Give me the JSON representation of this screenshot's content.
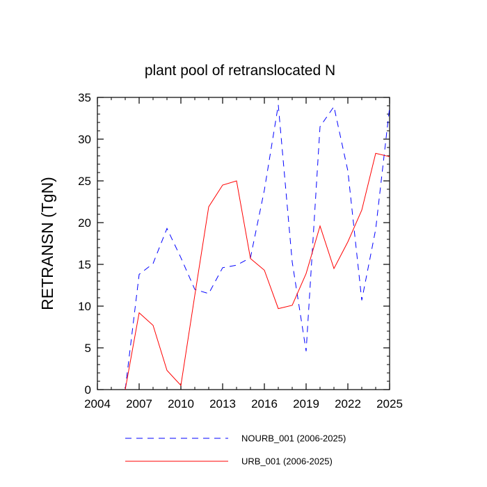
{
  "chart_data": {
    "type": "line",
    "title": "plant pool of retranslocated N",
    "xlabel": "",
    "ylabel": "RETRANSN  (TgN)",
    "xlim": [
      2004,
      2025
    ],
    "ylim": [
      0,
      35
    ],
    "xticks": [
      2004,
      2007,
      2010,
      2013,
      2016,
      2019,
      2022,
      2025
    ],
    "yticks": [
      0,
      5,
      10,
      15,
      20,
      25,
      30,
      35
    ],
    "x": [
      2006,
      2007,
      2008,
      2009,
      2010,
      2011,
      2012,
      2013,
      2014,
      2015,
      2016,
      2017,
      2018,
      2019,
      2020,
      2021,
      2022,
      2023,
      2024,
      2025
    ],
    "series": [
      {
        "name": "NOURB_001 (2006-2025)",
        "color": "#0000ff",
        "dash": "dashed",
        "values": [
          0.0,
          13.8,
          15.1,
          19.3,
          15.8,
          12.0,
          11.5,
          14.6,
          14.9,
          15.8,
          23.9,
          34.1,
          15.3,
          4.6,
          31.5,
          33.9,
          26.2,
          10.7,
          19.2,
          33.8
        ]
      },
      {
        "name": "URB_001 (2006-2025)",
        "color": "#ff0000",
        "dash": "solid",
        "values": [
          0.0,
          9.2,
          7.7,
          2.3,
          0.5,
          11.3,
          21.9,
          24.5,
          25.0,
          15.7,
          14.3,
          9.7,
          10.1,
          13.9,
          19.6,
          14.5,
          17.7,
          21.5,
          28.3,
          27.9
        ]
      }
    ],
    "legend_position": "bottom"
  }
}
